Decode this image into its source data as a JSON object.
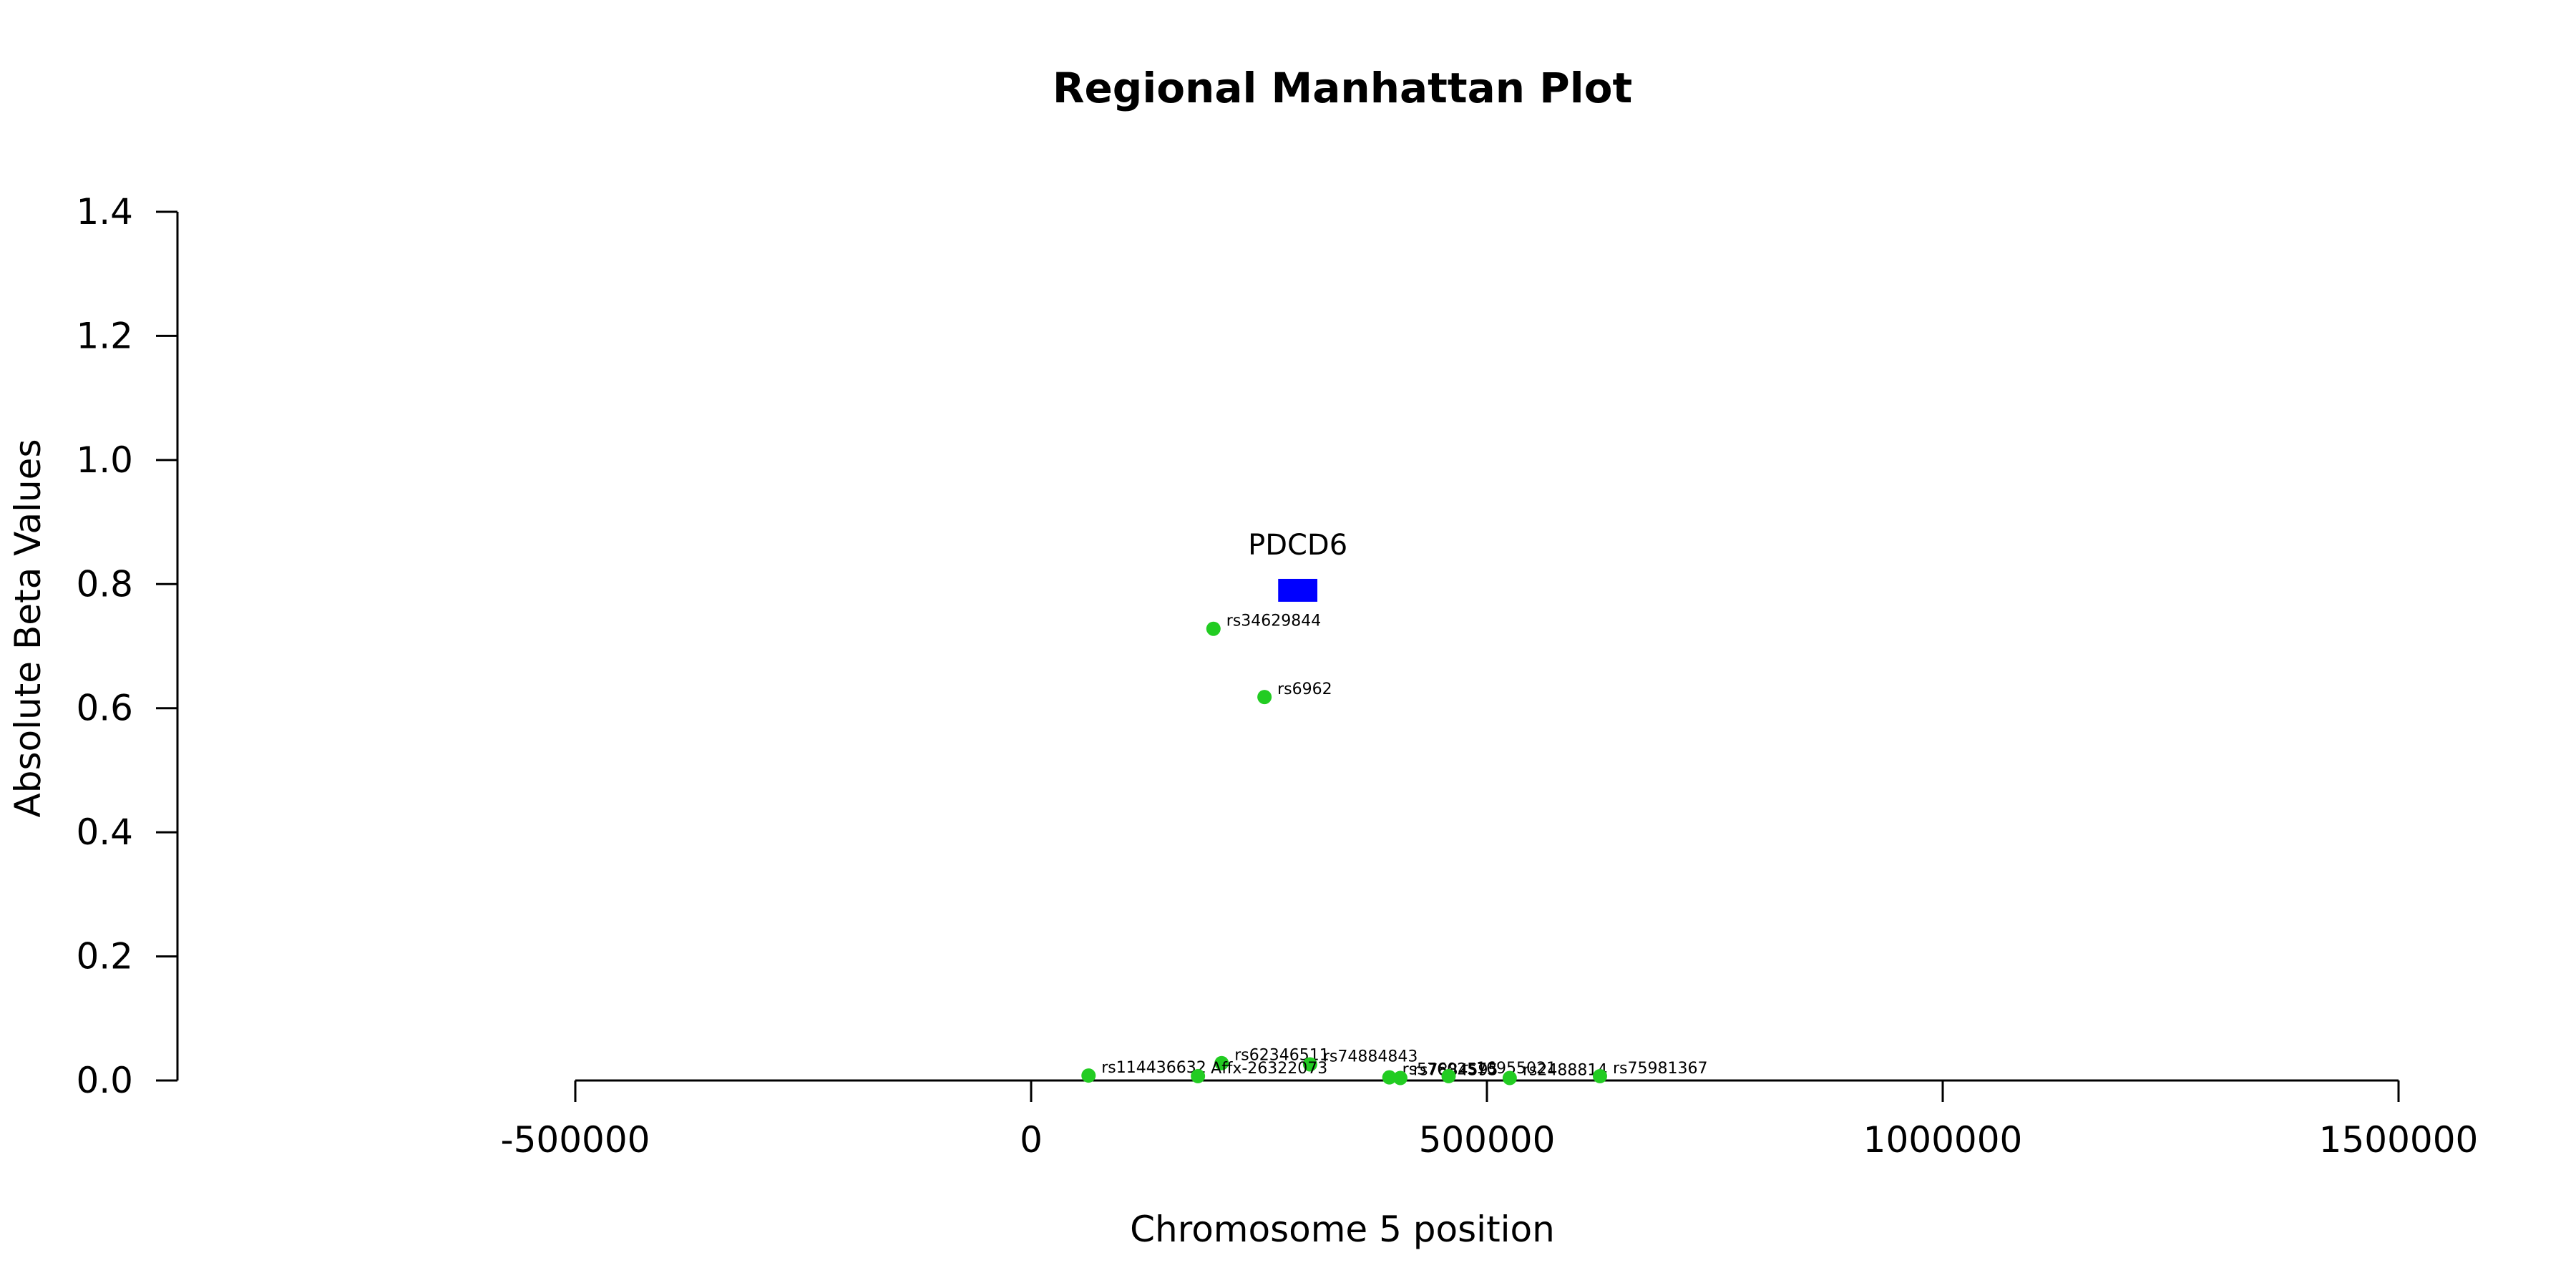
{
  "chart_data": {
    "type": "scatter",
    "title": "Regional Manhattan Plot",
    "xlabel": "Chromosome 5 position",
    "ylabel": "Absolute Beta Values",
    "xlim": [
      -500000,
      1500000
    ],
    "ylim": [
      0,
      1.4
    ],
    "x_ticks": [
      -500000,
      0,
      500000,
      1000000,
      1500000
    ],
    "x_tick_labels": [
      "-500000",
      "0",
      "500000",
      "1000000",
      "1500000"
    ],
    "y_ticks": [
      0.0,
      0.2,
      0.4,
      0.6,
      0.8,
      1.0,
      1.2,
      1.4
    ],
    "y_tick_labels": [
      "0.0",
      "0.2",
      "0.4",
      "0.6",
      "0.8",
      "1.0",
      "1.2",
      "1.4"
    ],
    "grid": false,
    "point_color": "#22cc22",
    "points": [
      {
        "label": "rs34629844",
        "x": 200000,
        "y": 0.728
      },
      {
        "label": "rs6962",
        "x": 256000,
        "y": 0.618
      },
      {
        "label": "rs62346511",
        "x": 209000,
        "y": 0.028
      },
      {
        "label": "rs74884843",
        "x": 306000,
        "y": 0.026
      },
      {
        "label": "rs114436632",
        "x": 63000,
        "y": 0.008
      },
      {
        "label": "Affx-26322073",
        "x": 183000,
        "y": 0.007
      },
      {
        "label": "rs57602573",
        "x": 393000,
        "y": 0.005
      },
      {
        "label": "rs7884595",
        "x": 405000,
        "y": 0.004
      },
      {
        "label": "rs16955021",
        "x": 458000,
        "y": 0.007
      },
      {
        "label": "rs2488814",
        "x": 525000,
        "y": 0.004
      },
      {
        "label": "rs75981367",
        "x": 624000,
        "y": 0.007
      }
    ],
    "genes": [
      {
        "name": "PDCD6",
        "start": 271000,
        "end": 314000,
        "y": 0.79,
        "color": "#0000ff"
      }
    ]
  }
}
